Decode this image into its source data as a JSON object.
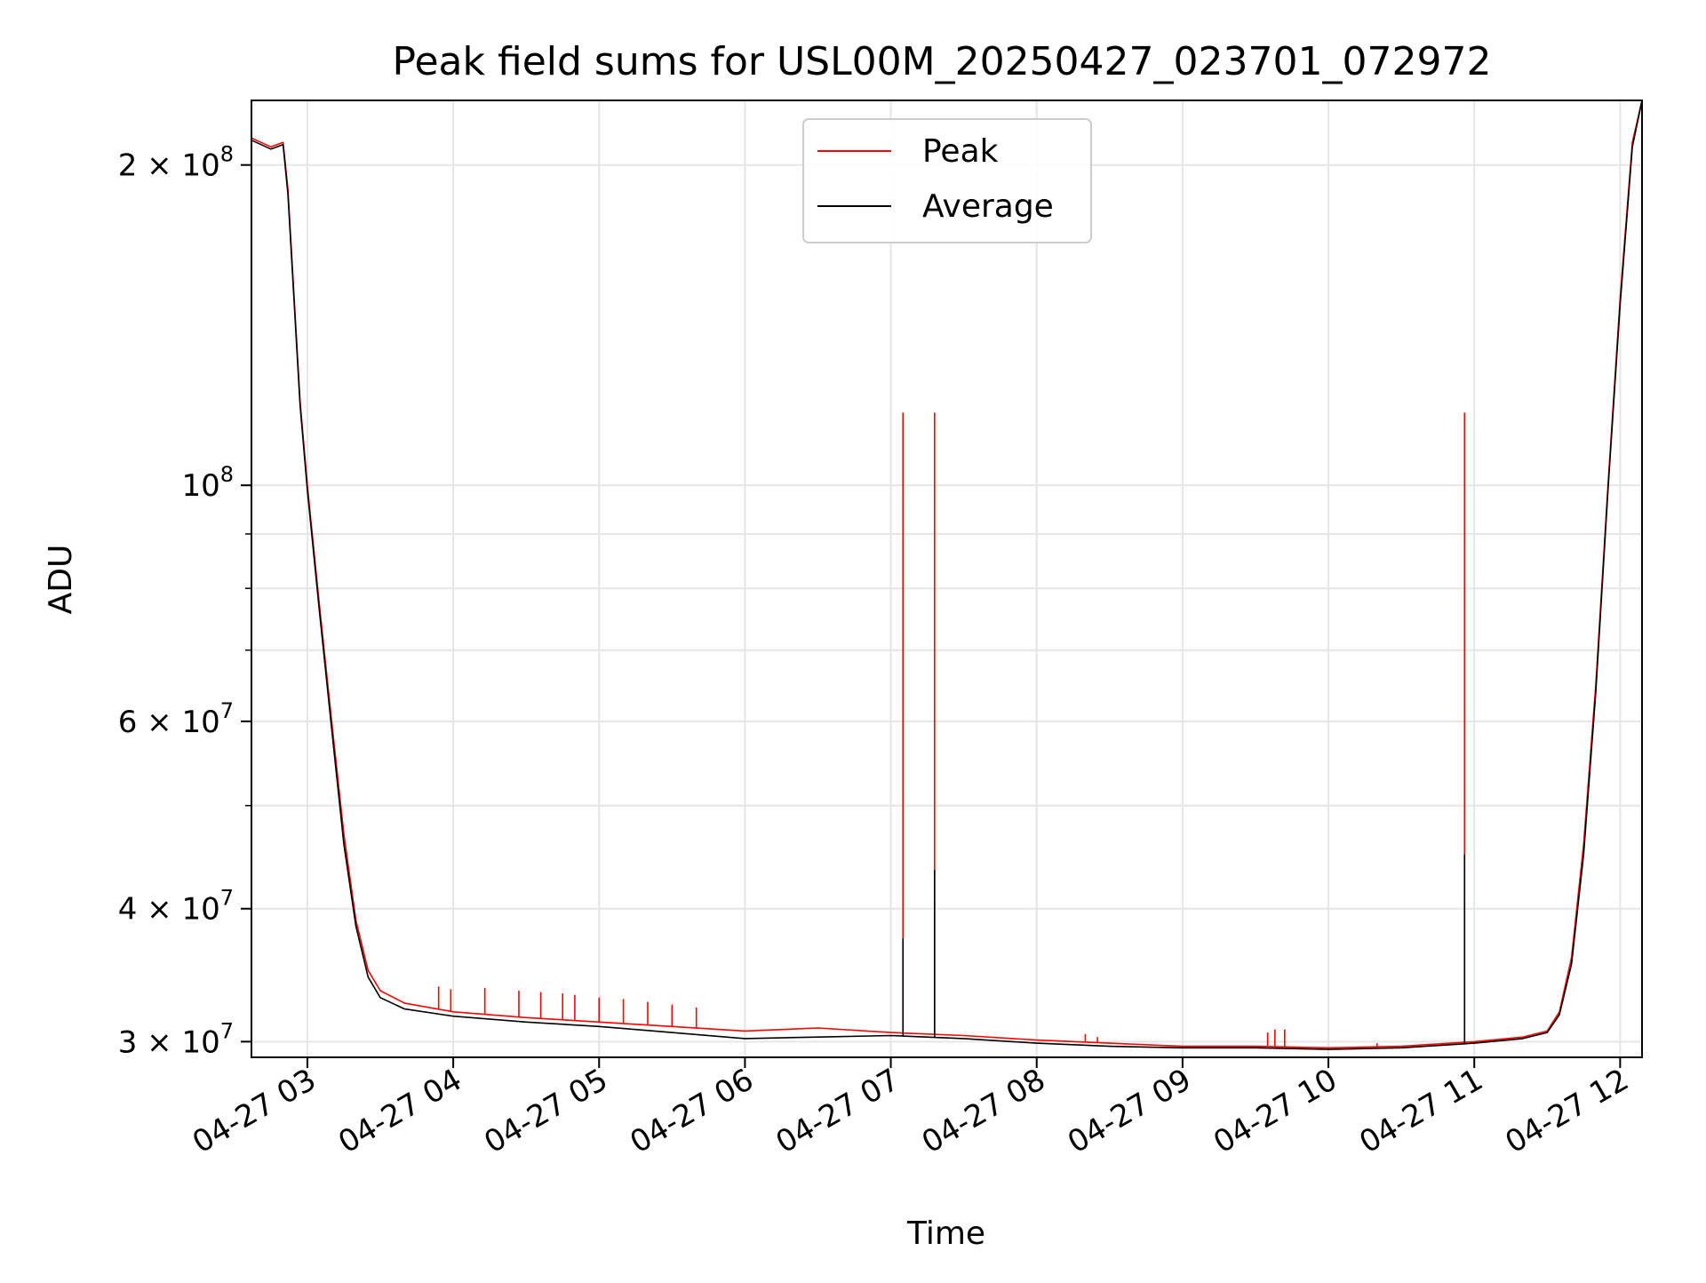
{
  "chart_data": {
    "type": "line",
    "title": "Peak field sums for USL00M_20250427_023701_072972",
    "xlabel": "Time",
    "ylabel": "ADU",
    "yscale": "log",
    "xlim": [
      "2025-04-27 02:37",
      "2025-04-27 12:09"
    ],
    "ylim": [
      29000000,
      230000000
    ],
    "grid": true,
    "legend_position": "top-center",
    "x_tick_labels": [
      {
        "time": "2025-04-27 03:00",
        "label": "04-27 03"
      },
      {
        "time": "2025-04-27 04:00",
        "label": "04-27 04"
      },
      {
        "time": "2025-04-27 05:00",
        "label": "04-27 05"
      },
      {
        "time": "2025-04-27 06:00",
        "label": "04-27 06"
      },
      {
        "time": "2025-04-27 07:00",
        "label": "04-27 07"
      },
      {
        "time": "2025-04-27 08:00",
        "label": "04-27 08"
      },
      {
        "time": "2025-04-27 09:00",
        "label": "04-27 09"
      },
      {
        "time": "2025-04-27 10:00",
        "label": "04-27 10"
      },
      {
        "time": "2025-04-27 11:00",
        "label": "04-27 11"
      },
      {
        "time": "2025-04-27 12:00",
        "label": "04-27 12"
      }
    ],
    "y_tick_labels": [
      {
        "value": 30000000,
        "base": "3 × 10",
        "exp": "7"
      },
      {
        "value": 40000000,
        "base": "4 × 10",
        "exp": "7"
      },
      {
        "value": 60000000,
        "base": "6 × 10",
        "exp": "7"
      },
      {
        "value": 100000000,
        "base": "10",
        "exp": "8"
      },
      {
        "value": 200000000,
        "base": "2 × 10",
        "exp": "8"
      }
    ],
    "y_minor_ticks": [
      50000000,
      70000000,
      80000000,
      90000000
    ],
    "series": [
      {
        "name": "Peak",
        "color": "#ff0000",
        "x": [
          "2025-04-27 02:37",
          "2025-04-27 02:45",
          "2025-04-27 02:50",
          "2025-04-27 02:52",
          "2025-04-27 02:57",
          "2025-04-27 03:00",
          "2025-04-27 03:05",
          "2025-04-27 03:10",
          "2025-04-27 03:15",
          "2025-04-27 03:20",
          "2025-04-27 03:25",
          "2025-04-27 03:30",
          "2025-04-27 03:40",
          "2025-04-27 04:00",
          "2025-04-27 04:30",
          "2025-04-27 05:00",
          "2025-04-27 05:30",
          "2025-04-27 06:00",
          "2025-04-27 06:30",
          "2025-04-27 07:00",
          "2025-04-27 07:30",
          "2025-04-27 08:00",
          "2025-04-27 08:30",
          "2025-04-27 09:00",
          "2025-04-27 09:30",
          "2025-04-27 10:00",
          "2025-04-27 10:30",
          "2025-04-27 11:00",
          "2025-04-27 11:20",
          "2025-04-27 11:30",
          "2025-04-27 11:35",
          "2025-04-27 11:40",
          "2025-04-27 11:45",
          "2025-04-27 11:50",
          "2025-04-27 11:55",
          "2025-04-27 12:00",
          "2025-04-27 12:05",
          "2025-04-27 12:09"
        ],
        "y": [
          212000000,
          208000000,
          210000000,
          190000000,
          120000000,
          100000000,
          77000000,
          60000000,
          47000000,
          39000000,
          35000000,
          33500000,
          32600000,
          32000000,
          31600000,
          31300000,
          31000000,
          30700000,
          30900000,
          30600000,
          30400000,
          30100000,
          29900000,
          29700000,
          29700000,
          29600000,
          29700000,
          30000000,
          30300000,
          30700000,
          32000000,
          36000000,
          46000000,
          65000000,
          100000000,
          150000000,
          210000000,
          230000000
        ]
      },
      {
        "name": "Average",
        "color": "#000000",
        "x": [
          "2025-04-27 02:37",
          "2025-04-27 02:45",
          "2025-04-27 02:50",
          "2025-04-27 02:52",
          "2025-04-27 02:57",
          "2025-04-27 03:00",
          "2025-04-27 03:05",
          "2025-04-27 03:10",
          "2025-04-27 03:15",
          "2025-04-27 03:20",
          "2025-04-27 03:25",
          "2025-04-27 03:30",
          "2025-04-27 03:40",
          "2025-04-27 04:00",
          "2025-04-27 04:30",
          "2025-04-27 05:00",
          "2025-04-27 05:30",
          "2025-04-27 06:00",
          "2025-04-27 06:30",
          "2025-04-27 07:00",
          "2025-04-27 07:30",
          "2025-04-27 08:00",
          "2025-04-27 08:30",
          "2025-04-27 09:00",
          "2025-04-27 09:30",
          "2025-04-27 10:00",
          "2025-04-27 10:30",
          "2025-04-27 11:00",
          "2025-04-27 11:20",
          "2025-04-27 11:30",
          "2025-04-27 11:35",
          "2025-04-27 11:40",
          "2025-04-27 11:45",
          "2025-04-27 11:50",
          "2025-04-27 11:55",
          "2025-04-27 12:00",
          "2025-04-27 12:05",
          "2025-04-27 12:09"
        ],
        "y": [
          211000000,
          207000000,
          209000000,
          188000000,
          119000000,
          99000000,
          76000000,
          59000000,
          46000000,
          38500000,
          34500000,
          33000000,
          32200000,
          31700000,
          31300000,
          31000000,
          30600000,
          30200000,
          30300000,
          30400000,
          30200000,
          29900000,
          29700000,
          29600000,
          29600000,
          29500000,
          29600000,
          29900000,
          30200000,
          30600000,
          31800000,
          35500000,
          45000000,
          64000000,
          99000000,
          148000000,
          208000000,
          230000000
        ]
      }
    ],
    "peak_spikes": [
      {
        "time": "2025-04-27 03:54",
        "peak": 33800000
      },
      {
        "time": "2025-04-27 03:59",
        "peak": 33600000
      },
      {
        "time": "2025-04-27 04:13",
        "peak": 33700000
      },
      {
        "time": "2025-04-27 04:27",
        "peak": 33500000
      },
      {
        "time": "2025-04-27 04:36",
        "peak": 33400000
      },
      {
        "time": "2025-04-27 04:45",
        "peak": 33300000
      },
      {
        "time": "2025-04-27 04:50",
        "peak": 33200000
      },
      {
        "time": "2025-04-27 05:00",
        "peak": 33000000
      },
      {
        "time": "2025-04-27 05:10",
        "peak": 32900000
      },
      {
        "time": "2025-04-27 05:20",
        "peak": 32700000
      },
      {
        "time": "2025-04-27 05:30",
        "peak": 32500000
      },
      {
        "time": "2025-04-27 05:40",
        "peak": 32300000
      },
      {
        "time": "2025-04-27 07:05",
        "peak": 117000000
      },
      {
        "time": "2025-04-27 07:18",
        "peak": 117000000
      },
      {
        "time": "2025-04-27 08:20",
        "peak": 30500000
      },
      {
        "time": "2025-04-27 08:25",
        "peak": 30300000
      },
      {
        "time": "2025-04-27 09:35",
        "peak": 30600000
      },
      {
        "time": "2025-04-27 09:38",
        "peak": 30800000
      },
      {
        "time": "2025-04-27 09:42",
        "peak": 30800000
      },
      {
        "time": "2025-04-27 10:20",
        "peak": 29900000
      },
      {
        "time": "2025-04-27 10:56",
        "peak": 117000000
      }
    ],
    "average_spikes": [
      {
        "time": "2025-04-27 07:05",
        "average": 37500000
      },
      {
        "time": "2025-04-27 07:18",
        "average": 43500000
      },
      {
        "time": "2025-04-27 10:56",
        "average": 45000000
      }
    ]
  }
}
